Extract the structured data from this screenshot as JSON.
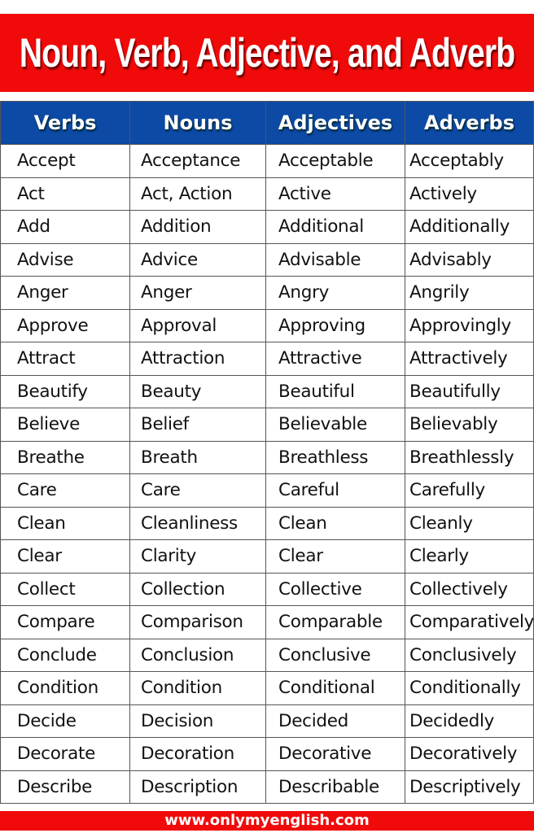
{
  "title": "Noun, Verb, Adjective, and Adverb",
  "headers": [
    "Verbs",
    "Nouns",
    "Adjectives",
    "Adverbs"
  ],
  "rows": [
    [
      "Accept",
      "Acceptance",
      "Acceptable",
      "Acceptably"
    ],
    [
      "Act",
      "Act, Action",
      "Active",
      "Actively"
    ],
    [
      "Add",
      "Addition",
      "Additional",
      "Additionally"
    ],
    [
      "Advise",
      "Advice",
      "Advisable",
      "Advisably"
    ],
    [
      "Anger",
      "Anger",
      "Angry",
      "Angrily"
    ],
    [
      "Approve",
      "Approval",
      "Approving",
      "Approvingly"
    ],
    [
      "Attract",
      "Attraction",
      "Attractive",
      "Attractively"
    ],
    [
      "Beautify",
      "Beauty",
      "Beautiful",
      "Beautifully"
    ],
    [
      "Believe",
      "Belief",
      "Believable",
      "Believably"
    ],
    [
      "Breathe",
      "Breath",
      "Breathless",
      "Breathlessly"
    ],
    [
      "Care",
      "Care",
      "Careful",
      "Carefully"
    ],
    [
      "Clean",
      "Cleanliness",
      "Clean",
      "Cleanly"
    ],
    [
      "Clear",
      "Clarity",
      "Clear",
      "Clearly"
    ],
    [
      "Collect",
      "Collection",
      "Collective",
      "Collectively"
    ],
    [
      "Compare",
      "Comparison",
      "Comparable",
      "Comparatively"
    ],
    [
      "Conclude",
      "Conclusion",
      "Conclusive",
      "Conclusively"
    ],
    [
      "Condition",
      "Condition",
      "Conditional",
      "Conditionally"
    ],
    [
      "Decide",
      "Decision",
      "Decided",
      "Decidedly"
    ],
    [
      "Decorate",
      "Decoration",
      "Decorative",
      "Decoratively"
    ],
    [
      "Describe",
      "Description",
      "Describable",
      "Descriptively"
    ]
  ],
  "footer": "www.onlymyenglish.com",
  "colors": {
    "banner": "#f10a0a",
    "header": "#0c4aa6"
  }
}
